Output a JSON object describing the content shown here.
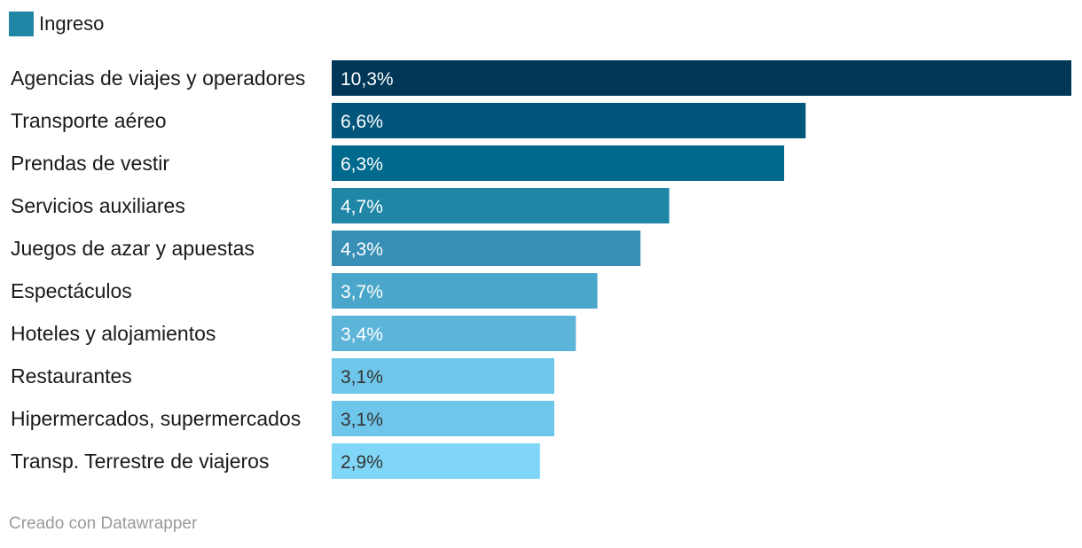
{
  "legend": {
    "label": "Ingreso",
    "color": "#1f86a6"
  },
  "credit": "Creado con Datawrapper",
  "chart_data": {
    "type": "bar",
    "orientation": "horizontal",
    "title": "",
    "xlabel": "",
    "ylabel": "",
    "grid": false,
    "legend_position": "top-left",
    "xlim": [
      0,
      10.3
    ],
    "series": [
      {
        "name": "Ingreso"
      }
    ],
    "categories": [
      "Agencias de viajes y operadores",
      "Transporte aéreo",
      "Prendas de vestir",
      "Servicios auxiliares",
      "Juegos de azar y apuestas",
      "Espectáculos",
      "Hoteles y alojamientos",
      "Restaurantes",
      "Hipermercados, supermercados",
      "Transp. Terrestre de viajeros"
    ],
    "values": [
      10.3,
      6.6,
      6.3,
      4.7,
      4.3,
      3.7,
      3.4,
      3.1,
      3.1,
      2.9
    ],
    "value_labels": [
      "10,3%",
      "6,6%",
      "6,3%",
      "4,7%",
      "4,3%",
      "3,7%",
      "3,4%",
      "3,1%",
      "3,1%",
      "2,9%"
    ],
    "bar_colors": [
      "#003656",
      "#02557a",
      "#006a8e",
      "#1f86a6",
      "#378fb5",
      "#4aa6cb",
      "#5db4d9",
      "#6ec7ea",
      "#6ec7ea",
      "#7fd6f6"
    ],
    "label_colors": [
      "#ffffff",
      "#ffffff",
      "#ffffff",
      "#ffffff",
      "#ffffff",
      "#ffffff",
      "#ffffff",
      "#333333",
      "#333333",
      "#333333"
    ]
  }
}
